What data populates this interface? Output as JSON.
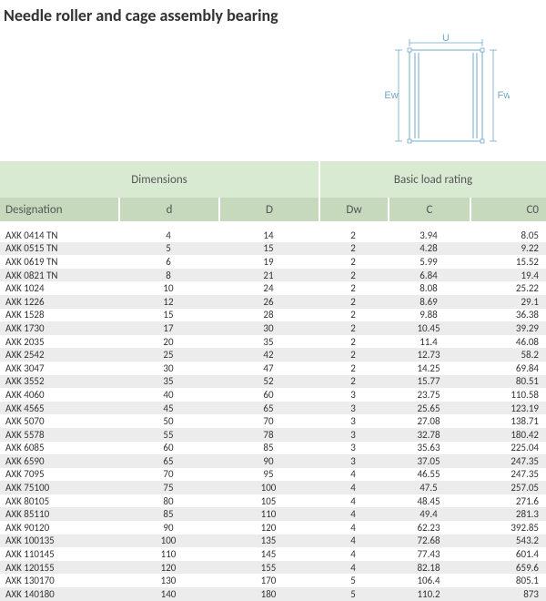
{
  "title": "Needle roller and cage assembly bearing",
  "diagram": {
    "labels": {
      "top": "U",
      "left": "Ew",
      "right": "Fw"
    },
    "stroke": "#6fa8c7",
    "label_color": "#6fa8c7",
    "font_size": 11
  },
  "table": {
    "header_group_bg": "#d9ead3",
    "header_row_bg": "#c6d9bd",
    "row_alt_bg": "#ececec",
    "groups": [
      {
        "label": "Dimensions",
        "span_classes": [
          "c-designation",
          "c-d",
          "c-D"
        ]
      },
      {
        "label": "Basic load rating",
        "span_classes": [
          "c-Dw",
          "c-C",
          "c-C0"
        ]
      }
    ],
    "columns": [
      {
        "key": "designation",
        "label": "Designation",
        "class": "c-designation"
      },
      {
        "key": "d",
        "label": "d",
        "class": "c-d"
      },
      {
        "key": "D",
        "label": "D",
        "class": "c-D"
      },
      {
        "key": "Dw",
        "label": "Dw",
        "class": "c-Dw"
      },
      {
        "key": "C",
        "label": "C",
        "class": "c-C"
      },
      {
        "key": "C0",
        "label": "C0",
        "class": "c-C0"
      }
    ],
    "rows": [
      {
        "designation": "AXK 0414 TN",
        "d": "4",
        "D": "14",
        "Dw": "2",
        "C": "3.94",
        "C0": "8.05"
      },
      {
        "designation": "AXK 0515 TN",
        "d": "5",
        "D": "15",
        "Dw": "2",
        "C": "4.28",
        "C0": "9.22"
      },
      {
        "designation": "AXK 0619 TN",
        "d": "6",
        "D": "19",
        "Dw": "2",
        "C": "5.99",
        "C0": "15.52"
      },
      {
        "designation": "AXK 0821 TN",
        "d": "8",
        "D": "21",
        "Dw": "2",
        "C": "6.84",
        "C0": "19.4"
      },
      {
        "designation": "AXK 1024",
        "d": "10",
        "D": "24",
        "Dw": "2",
        "C": "8.08",
        "C0": "25.22"
      },
      {
        "designation": "AXK 1226",
        "d": "12",
        "D": "26",
        "Dw": "2",
        "C": "8.69",
        "C0": "29.1"
      },
      {
        "designation": "AXK 1528",
        "d": "15",
        "D": "28",
        "Dw": "2",
        "C": "9.88",
        "C0": "36.38"
      },
      {
        "designation": "AXK 1730",
        "d": "17",
        "D": "30",
        "Dw": "2",
        "C": "10.45",
        "C0": "39.29"
      },
      {
        "designation": "AXK 2035",
        "d": "20",
        "D": "35",
        "Dw": "2",
        "C": "11.4",
        "C0": "46.08"
      },
      {
        "designation": "AXK 2542",
        "d": "25",
        "D": "42",
        "Dw": "2",
        "C": "12.73",
        "C0": "58.2"
      },
      {
        "designation": "AXK 3047",
        "d": "30",
        "D": "47",
        "Dw": "2",
        "C": "14.25",
        "C0": "69.84"
      },
      {
        "designation": "AXK 3552",
        "d": "35",
        "D": "52",
        "Dw": "2",
        "C": "15.77",
        "C0": "80.51"
      },
      {
        "designation": "AXK 4060",
        "d": "40",
        "D": "60",
        "Dw": "3",
        "C": "23.75",
        "C0": "110.58"
      },
      {
        "designation": "AXK 4565",
        "d": "45",
        "D": "65",
        "Dw": "3",
        "C": "25.65",
        "C0": "123.19"
      },
      {
        "designation": "AXK 5070",
        "d": "50",
        "D": "70",
        "Dw": "3",
        "C": "27.08",
        "C0": "138.71"
      },
      {
        "designation": "AXK 5578",
        "d": "55",
        "D": "78",
        "Dw": "3",
        "C": "32.78",
        "C0": "180.42"
      },
      {
        "designation": "AXK 6085",
        "d": "60",
        "D": "85",
        "Dw": "3",
        "C": "35.63",
        "C0": "225.04"
      },
      {
        "designation": "AXK 6590",
        "d": "65",
        "D": "90",
        "Dw": "3",
        "C": "37.05",
        "C0": "247.35"
      },
      {
        "designation": "AXK 7095",
        "d": "70",
        "D": "95",
        "Dw": "4",
        "C": "46.55",
        "C0": "247.35"
      },
      {
        "designation": "AXK 75100",
        "d": "75",
        "D": "100",
        "Dw": "4",
        "C": "47.5",
        "C0": "257.05"
      },
      {
        "designation": "AXK 80105",
        "d": "80",
        "D": "105",
        "Dw": "4",
        "C": "48.45",
        "C0": "271.6"
      },
      {
        "designation": "AXK 85110",
        "d": "85",
        "D": "110",
        "Dw": "4",
        "C": "49.4",
        "C0": "281.3"
      },
      {
        "designation": "AXK 90120",
        "d": "90",
        "D": "120",
        "Dw": "4",
        "C": "62.23",
        "C0": "392.85"
      },
      {
        "designation": "AXK 100135",
        "d": "100",
        "D": "135",
        "Dw": "4",
        "C": "72.68",
        "C0": "543.2"
      },
      {
        "designation": "AXK 110145",
        "d": "110",
        "D": "145",
        "Dw": "4",
        "C": "77.43",
        "C0": "601.4"
      },
      {
        "designation": "AXK 120155",
        "d": "120",
        "D": "155",
        "Dw": "4",
        "C": "82.18",
        "C0": "659.6"
      },
      {
        "designation": "AXK 130170",
        "d": "130",
        "D": "170",
        "Dw": "5",
        "C": "106.4",
        "C0": "805.1"
      },
      {
        "designation": "AXK 140180",
        "d": "140",
        "D": "180",
        "Dw": "5",
        "C": "110.2",
        "C0": "873"
      }
    ]
  }
}
